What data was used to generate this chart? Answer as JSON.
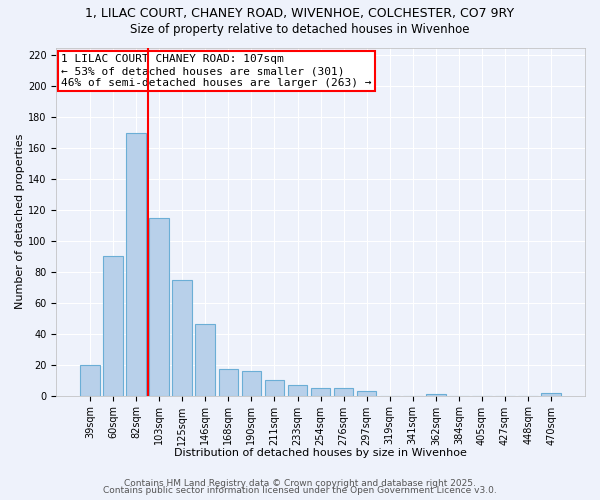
{
  "title1": "1, LILAC COURT, CHANEY ROAD, WIVENHOE, COLCHESTER, CO7 9RY",
  "title2": "Size of property relative to detached houses in Wivenhoe",
  "xlabel": "Distribution of detached houses by size in Wivenhoe",
  "ylabel": "Number of detached properties",
  "bar_labels": [
    "39sqm",
    "60sqm",
    "82sqm",
    "103sqm",
    "125sqm",
    "146sqm",
    "168sqm",
    "190sqm",
    "211sqm",
    "233sqm",
    "254sqm",
    "276sqm",
    "297sqm",
    "319sqm",
    "341sqm",
    "362sqm",
    "384sqm",
    "405sqm",
    "427sqm",
    "448sqm",
    "470sqm"
  ],
  "bar_values": [
    20,
    90,
    170,
    115,
    75,
    46,
    17,
    16,
    10,
    7,
    5,
    5,
    3,
    0,
    0,
    1,
    0,
    0,
    0,
    0,
    2
  ],
  "bar_color": "#b8d0ea",
  "bar_edge_color": "#6baed6",
  "vline_x": 2.5,
  "vline_color": "red",
  "ylim": [
    0,
    225
  ],
  "yticks": [
    0,
    20,
    40,
    60,
    80,
    100,
    120,
    140,
    160,
    180,
    200,
    220
  ],
  "annotation_text": "1 LILAC COURT CHANEY ROAD: 107sqm\n← 53% of detached houses are smaller (301)\n46% of semi-detached houses are larger (263) →",
  "annotation_box_color": "white",
  "annotation_box_edge": "red",
  "footer1": "Contains HM Land Registry data © Crown copyright and database right 2025.",
  "footer2": "Contains public sector information licensed under the Open Government Licence v3.0.",
  "background_color": "#eef2fb",
  "grid_color": "#ffffff",
  "title1_fontsize": 9,
  "title2_fontsize": 8.5,
  "axis_label_fontsize": 8,
  "tick_fontsize": 7,
  "annotation_fontsize": 8,
  "footer_fontsize": 6.5
}
